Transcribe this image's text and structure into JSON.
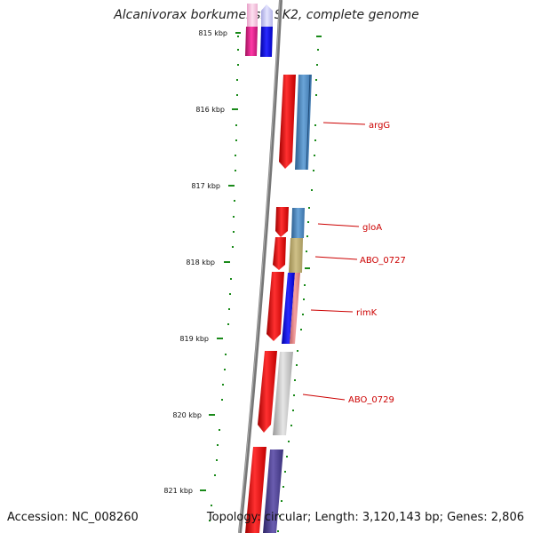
{
  "title": "Alcanivorax borkumensis SK2, complete genome",
  "footer": {
    "accession": "Accession: NC_008260",
    "summary": "Topology: circular; Length: 3,120,143 bp; Genes: 2,806"
  },
  "scale_labels": [
    "815 kbp",
    "816 kbp",
    "817 kbp",
    "818 kbp",
    "819 kbp",
    "820 kbp",
    "821 kbp"
  ],
  "gene_labels": [
    "argG",
    "gloA",
    "ABO_0727",
    "rimK",
    "ABO_0729"
  ],
  "colors": {
    "backbone": "#777777",
    "dots": "#1a8a1a",
    "forward_red": "#ee1111",
    "label_red": "#cc0000",
    "steel_blue": "#4a86c0",
    "blue": "#1a1aee",
    "khaki": "#c0b070",
    "salmon": "#e88888",
    "gray": "#bdbdbd",
    "purple": "#4b3f8f",
    "magenta": "#dd1a8a",
    "pink": "#f4b8d8",
    "lavender": "#c8c8f0"
  }
}
